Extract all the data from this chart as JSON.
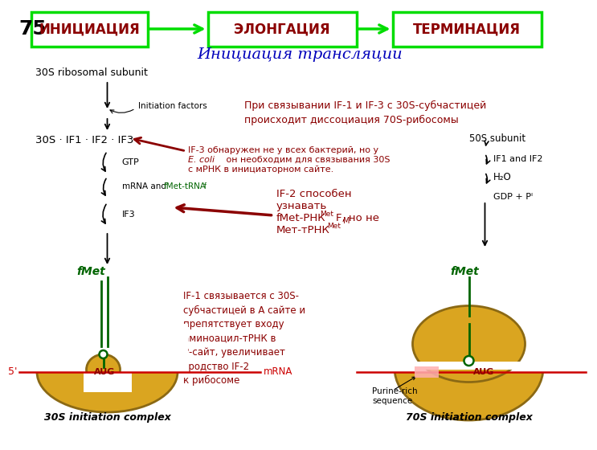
{
  "slide_number": "75",
  "title": "Инициация трансляции",
  "box_labels": [
    "ИНИЦИАЦИЯ",
    "ЭЛОНГАЦИЯ",
    "ТЕРМИНАЦИЯ"
  ],
  "box_color": "#00dd00",
  "box_text_color": "#8B0000",
  "arrow_color": "#00dd00",
  "title_color": "#0000bb",
  "bg_color": "#ffffff",
  "annotation1": "При связывании IF-1 и IF-3 с 30S-субчастицей\nпроисходит диссоциация 70S-рибосомы",
  "annotation2_line1": "IF-3 обнаружен не у всех бактерий, но у",
  "annotation2_line2": "E. coli он необходим для связывания 30S",
  "annotation2_line3": "с мРНК в инициаторном сайте.",
  "annotation3_line1": "IF-2 способен",
  "annotation3_line2": "узнавать",
  "annotation3_line3": "fMet-РНК",
  "annotation3_sup1": "Met",
  "annotation3_line4": "F, но не",
  "annotation3_line5": "Мет-тРНК",
  "annotation3_sup2": "Met",
  "annotation3_line6": "M",
  "annotation4": "IF-1 связывается с 30S-\nсубчастицей в А сайте и\nпрепятствует входу\nаминоацил-тРНК в\nР-сайт, увеличивает\nсродство IF-2\nк рибосоме",
  "label_30S_subunit": "30S ribosomal subunit",
  "label_30S_IF": "30S · IF1 · IF2 · IF3",
  "label_GTP": "GTP",
  "label_mRNA_fMet": "mRNA and fMet-tRNA",
  "label_fMet_sub": "f",
  "label_IF3": "IF3",
  "label_fMet_left": "fMet",
  "label_fMet_right": "fMet",
  "label_5prime": "5'",
  "label_mRNA": "mRNA",
  "label_AUG": "AUG",
  "label_30S_complex": "30S initiation complex",
  "label_70S_complex": "70S initiation complex",
  "label_initiation_factors": "Initiation factors",
  "label_50S": "50S subunit",
  "label_IF1_IF2": "IF1 and IF2",
  "label_H2O": "H₂O",
  "label_GDP": "GDP + Pᴵ",
  "label_purine": "Purine-rich\nsequence",
  "dark_red": "#8B0000",
  "dark_green": "#006400",
  "bright_green": "#008000",
  "black": "#000000",
  "blue": "#0000bb",
  "gold": "#DAA520",
  "gold_edge": "#8B6914",
  "mRNA_color": "#cc0000",
  "pink": "#ffb0b0"
}
